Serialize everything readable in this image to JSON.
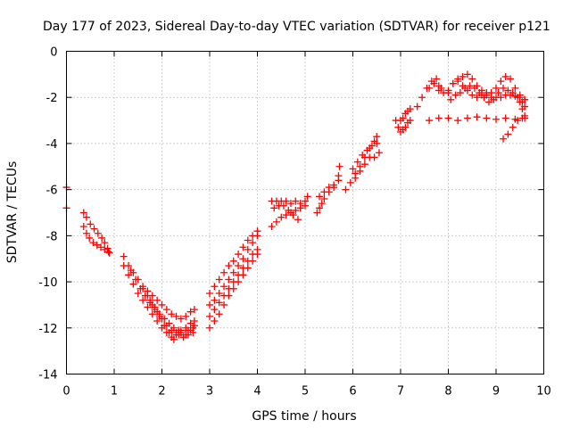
{
  "chart_data": {
    "type": "scatter",
    "title": "Day 177 of 2023, Sidereal Day-to-day VTEC variation (SDTVAR) for receiver p121",
    "xlabel": "GPS time / hours",
    "ylabel": "SDTVAR / TECUs",
    "xlim": [
      0,
      10
    ],
    "ylim": [
      -14,
      0
    ],
    "x_ticks": [
      0,
      1,
      2,
      3,
      4,
      5,
      6,
      7,
      8,
      9,
      10
    ],
    "y_ticks": [
      0,
      -2,
      -4,
      -6,
      -8,
      -10,
      -12,
      -14
    ],
    "grid": true,
    "legend": "none",
    "marker": "plus",
    "color": "#ff0000",
    "series": [
      {
        "points": [
          [
            0.0,
            -5.9
          ],
          [
            0.0,
            -6.8
          ]
        ]
      },
      {
        "points": [
          [
            0.36,
            -7.0
          ],
          [
            0.42,
            -7.2
          ],
          [
            0.5,
            -7.5
          ],
          [
            0.58,
            -7.7
          ],
          [
            0.66,
            -7.9
          ],
          [
            0.74,
            -8.1
          ],
          [
            0.8,
            -8.3
          ],
          [
            0.86,
            -8.55
          ],
          [
            0.9,
            -8.75
          ]
        ]
      },
      {
        "points": [
          [
            0.36,
            -7.6
          ],
          [
            0.42,
            -7.9
          ],
          [
            0.48,
            -8.1
          ],
          [
            0.56,
            -8.3
          ],
          [
            0.64,
            -8.4
          ],
          [
            0.72,
            -8.5
          ],
          [
            0.8,
            -8.6
          ],
          [
            0.88,
            -8.7
          ]
        ]
      },
      {
        "points": [
          [
            1.2,
            -8.9
          ],
          [
            1.3,
            -9.3
          ],
          [
            1.4,
            -9.6
          ],
          [
            1.5,
            -9.9
          ],
          [
            1.6,
            -10.2
          ],
          [
            1.7,
            -10.4
          ],
          [
            1.8,
            -10.6
          ],
          [
            1.9,
            -10.8
          ],
          [
            2.0,
            -11.0
          ],
          [
            2.1,
            -11.2
          ],
          [
            2.2,
            -11.4
          ],
          [
            2.3,
            -11.5
          ],
          [
            2.4,
            -11.6
          ],
          [
            2.5,
            -11.5
          ],
          [
            2.6,
            -11.3
          ],
          [
            2.68,
            -11.2
          ]
        ]
      },
      {
        "points": [
          [
            1.2,
            -9.3
          ],
          [
            1.3,
            -9.7
          ],
          [
            1.4,
            -10.1
          ],
          [
            1.5,
            -10.5
          ],
          [
            1.6,
            -10.8
          ],
          [
            1.7,
            -11.1
          ],
          [
            1.8,
            -11.4
          ],
          [
            1.9,
            -11.7
          ],
          [
            2.0,
            -12.0
          ],
          [
            2.1,
            -12.2
          ],
          [
            2.2,
            -12.4
          ],
          [
            2.3,
            -12.3
          ],
          [
            2.4,
            -12.2
          ],
          [
            2.5,
            -12.3
          ],
          [
            2.6,
            -12.1
          ],
          [
            2.68,
            -11.9
          ]
        ]
      },
      {
        "points": [
          [
            1.35,
            -9.5
          ],
          [
            1.45,
            -9.9
          ],
          [
            1.55,
            -10.3
          ],
          [
            1.65,
            -10.6
          ],
          [
            1.75,
            -10.9
          ],
          [
            1.85,
            -11.2
          ],
          [
            1.95,
            -11.4
          ],
          [
            2.05,
            -11.6
          ],
          [
            2.15,
            -11.8
          ],
          [
            2.25,
            -12.0
          ],
          [
            2.35,
            -12.1
          ],
          [
            2.45,
            -12.4
          ],
          [
            2.55,
            -12.3
          ],
          [
            2.65,
            -12.0
          ]
        ]
      },
      {
        "points": [
          [
            1.6,
            -10.3
          ],
          [
            1.7,
            -10.6
          ],
          [
            1.8,
            -11.0
          ],
          [
            1.9,
            -11.3
          ],
          [
            2.0,
            -11.6
          ],
          [
            2.1,
            -11.9
          ],
          [
            2.2,
            -12.1
          ],
          [
            2.3,
            -12.2
          ],
          [
            2.4,
            -12.1
          ],
          [
            2.5,
            -12.0
          ],
          [
            2.6,
            -11.8
          ],
          [
            2.68,
            -11.7
          ]
        ]
      },
      {
        "points": [
          [
            1.75,
            -10.8
          ],
          [
            1.85,
            -11.1
          ],
          [
            1.95,
            -11.5
          ],
          [
            2.05,
            -11.9
          ],
          [
            2.15,
            -12.2
          ],
          [
            2.25,
            -12.5
          ],
          [
            2.35,
            -12.3
          ],
          [
            2.45,
            -12.4
          ],
          [
            2.55,
            -12.1
          ],
          [
            2.65,
            -12.2
          ]
        ]
      },
      {
        "points": [
          [
            3.0,
            -10.5
          ],
          [
            3.1,
            -10.2
          ],
          [
            3.2,
            -9.9
          ],
          [
            3.3,
            -9.6
          ],
          [
            3.4,
            -9.3
          ],
          [
            3.5,
            -9.1
          ],
          [
            3.6,
            -8.8
          ],
          [
            3.7,
            -8.5
          ],
          [
            3.8,
            -8.2
          ],
          [
            3.9,
            -8.0
          ],
          [
            4.0,
            -7.8
          ]
        ]
      },
      {
        "points": [
          [
            3.0,
            -11.0
          ],
          [
            3.1,
            -10.8
          ],
          [
            3.2,
            -10.5
          ],
          [
            3.3,
            -10.2
          ],
          [
            3.4,
            -9.9
          ],
          [
            3.5,
            -9.6
          ],
          [
            3.6,
            -9.3
          ],
          [
            3.7,
            -9.0
          ],
          [
            3.8,
            -8.6
          ],
          [
            3.9,
            -8.3
          ],
          [
            4.0,
            -8.0
          ]
        ]
      },
      {
        "points": [
          [
            3.0,
            -11.5
          ],
          [
            3.1,
            -11.2
          ],
          [
            3.2,
            -10.9
          ],
          [
            3.3,
            -10.6
          ],
          [
            3.4,
            -10.3
          ],
          [
            3.5,
            -10.0
          ],
          [
            3.6,
            -9.7
          ],
          [
            3.7,
            -9.4
          ],
          [
            3.8,
            -9.1
          ],
          [
            3.9,
            -8.8
          ],
          [
            4.0,
            -8.6
          ]
        ]
      },
      {
        "points": [
          [
            3.0,
            -12.0
          ],
          [
            3.1,
            -11.7
          ],
          [
            3.2,
            -11.4
          ],
          [
            3.3,
            -11.0
          ],
          [
            3.4,
            -10.6
          ],
          [
            3.5,
            -10.3
          ],
          [
            3.6,
            -10.0
          ],
          [
            3.7,
            -9.7
          ],
          [
            3.8,
            -9.4
          ],
          [
            3.9,
            -9.1
          ],
          [
            4.0,
            -8.8
          ]
        ]
      },
      {
        "points": [
          [
            4.3,
            -7.6
          ],
          [
            4.4,
            -7.4
          ],
          [
            4.5,
            -7.2
          ],
          [
            4.6,
            -7.1
          ],
          [
            4.7,
            -7.0
          ],
          [
            4.8,
            -6.9
          ],
          [
            4.9,
            -6.8
          ],
          [
            5.0,
            -6.7
          ]
        ]
      },
      {
        "points": [
          [
            4.3,
            -6.5
          ],
          [
            4.4,
            -6.5
          ],
          [
            4.5,
            -6.5
          ],
          [
            4.6,
            -6.5
          ],
          [
            4.7,
            -6.6
          ],
          [
            4.8,
            -6.5
          ],
          [
            4.9,
            -6.6
          ],
          [
            5.0,
            -6.5
          ],
          [
            5.05,
            -6.3
          ]
        ]
      },
      {
        "points": [
          [
            4.35,
            -6.8
          ],
          [
            4.45,
            -6.7
          ],
          [
            4.55,
            -6.7
          ],
          [
            4.65,
            -6.9
          ],
          [
            4.75,
            -7.1
          ],
          [
            4.85,
            -7.3
          ]
        ]
      },
      {
        "points": [
          [
            5.25,
            -7.0
          ],
          [
            5.3,
            -6.8
          ],
          [
            5.35,
            -6.6
          ],
          [
            5.4,
            -6.4
          ],
          [
            5.5,
            -6.1
          ],
          [
            5.6,
            -5.9
          ],
          [
            5.7,
            -5.4
          ],
          [
            5.72,
            -5.0
          ]
        ]
      },
      {
        "points": [
          [
            5.3,
            -6.3
          ],
          [
            5.4,
            -6.1
          ],
          [
            5.5,
            -5.9
          ],
          [
            5.6,
            -5.8
          ],
          [
            5.7,
            -5.6
          ]
        ]
      },
      {
        "points": [
          [
            5.85,
            -6.0
          ],
          [
            5.95,
            -5.7
          ],
          [
            6.05,
            -5.3
          ],
          [
            6.15,
            -5.0
          ],
          [
            6.25,
            -4.6
          ],
          [
            6.35,
            -4.2
          ],
          [
            6.45,
            -3.9
          ],
          [
            6.5,
            -3.7
          ]
        ]
      },
      {
        "points": [
          [
            6.0,
            -5.1
          ],
          [
            6.1,
            -4.8
          ],
          [
            6.2,
            -4.5
          ],
          [
            6.3,
            -4.3
          ],
          [
            6.4,
            -4.1
          ],
          [
            6.5,
            -4.0
          ]
        ]
      },
      {
        "points": [
          [
            6.05,
            -5.5
          ],
          [
            6.15,
            -5.2
          ],
          [
            6.25,
            -4.9
          ],
          [
            6.35,
            -4.6
          ],
          [
            6.45,
            -4.6
          ],
          [
            6.55,
            -4.4
          ]
        ]
      },
      {
        "points": [
          [
            6.9,
            -3.0
          ],
          [
            6.95,
            -3.3
          ],
          [
            7.0,
            -3.5
          ],
          [
            7.05,
            -3.4
          ],
          [
            7.1,
            -3.3
          ],
          [
            7.15,
            -3.1
          ],
          [
            7.2,
            -3.0
          ]
        ]
      },
      {
        "points": [
          [
            7.0,
            -3.0
          ],
          [
            7.05,
            -2.9
          ],
          [
            7.1,
            -2.7
          ],
          [
            7.15,
            -2.6
          ],
          [
            7.2,
            -2.5
          ]
        ]
      },
      {
        "points": [
          [
            7.35,
            -2.4
          ],
          [
            7.45,
            -2.0
          ],
          [
            7.55,
            -1.6
          ],
          [
            7.65,
            -1.3
          ],
          [
            7.75,
            -1.2
          ],
          [
            7.8,
            -1.5
          ],
          [
            7.85,
            -1.6
          ]
        ]
      },
      {
        "points": [
          [
            7.6,
            -1.6
          ],
          [
            7.7,
            -1.4
          ],
          [
            7.8,
            -1.7
          ],
          [
            7.9,
            -1.8
          ],
          [
            8.0,
            -1.8
          ]
        ]
      },
      {
        "points": [
          [
            7.6,
            -3.0
          ],
          [
            7.8,
            -2.9
          ],
          [
            8.0,
            -2.9
          ],
          [
            8.2,
            -3.0
          ],
          [
            8.4,
            -2.9
          ],
          [
            8.6,
            -2.85
          ],
          [
            8.8,
            -2.9
          ],
          [
            9.0,
            -2.95
          ],
          [
            9.2,
            -2.9
          ],
          [
            9.4,
            -2.95
          ],
          [
            9.6,
            -2.9
          ]
        ]
      },
      {
        "points": [
          [
            8.0,
            -1.7
          ],
          [
            8.1,
            -1.4
          ],
          [
            8.2,
            -1.2
          ],
          [
            8.3,
            -1.1
          ],
          [
            8.4,
            -1.0
          ],
          [
            8.5,
            -1.2
          ],
          [
            8.6,
            -1.5
          ],
          [
            8.7,
            -1.7
          ],
          [
            8.8,
            -1.8
          ],
          [
            8.9,
            -1.8
          ],
          [
            9.0,
            -1.6
          ],
          [
            9.1,
            -1.3
          ],
          [
            9.2,
            -1.1
          ],
          [
            9.3,
            -1.2
          ],
          [
            9.4,
            -1.6
          ],
          [
            9.5,
            -1.9
          ],
          [
            9.6,
            -2.1
          ]
        ]
      },
      {
        "points": [
          [
            8.05,
            -2.1
          ],
          [
            8.15,
            -1.9
          ],
          [
            8.25,
            -1.8
          ],
          [
            8.35,
            -1.6
          ],
          [
            8.45,
            -1.5
          ],
          [
            8.55,
            -1.6
          ],
          [
            8.65,
            -1.8
          ],
          [
            8.75,
            -2.0
          ],
          [
            8.85,
            -2.2
          ],
          [
            8.95,
            -2.1
          ],
          [
            9.05,
            -1.8
          ],
          [
            9.15,
            -1.6
          ],
          [
            9.25,
            -1.7
          ],
          [
            9.35,
            -1.8
          ],
          [
            9.45,
            -2.0
          ],
          [
            9.55,
            -2.2
          ],
          [
            9.6,
            -2.4
          ]
        ]
      },
      {
        "points": [
          [
            8.1,
            -1.4
          ],
          [
            8.2,
            -1.3
          ],
          [
            8.3,
            -1.5
          ],
          [
            8.4,
            -1.7
          ],
          [
            8.5,
            -1.9
          ],
          [
            8.6,
            -2.0
          ],
          [
            8.7,
            -1.9
          ],
          [
            8.8,
            -1.9
          ],
          [
            8.9,
            -2.0
          ],
          [
            9.0,
            -2.0
          ],
          [
            9.1,
            -2.0
          ],
          [
            9.2,
            -1.9
          ],
          [
            9.3,
            -1.9
          ],
          [
            9.4,
            -1.95
          ],
          [
            9.5,
            -2.0
          ],
          [
            9.6,
            -2.1
          ]
        ]
      },
      {
        "points": [
          [
            9.15,
            -3.8
          ],
          [
            9.25,
            -3.6
          ],
          [
            9.35,
            -3.3
          ],
          [
            9.45,
            -3.0
          ],
          [
            9.55,
            -2.9
          ]
        ]
      },
      {
        "points": [
          [
            9.5,
            -2.2
          ],
          [
            9.55,
            -2.5
          ],
          [
            9.6,
            -2.8
          ]
        ]
      }
    ]
  }
}
